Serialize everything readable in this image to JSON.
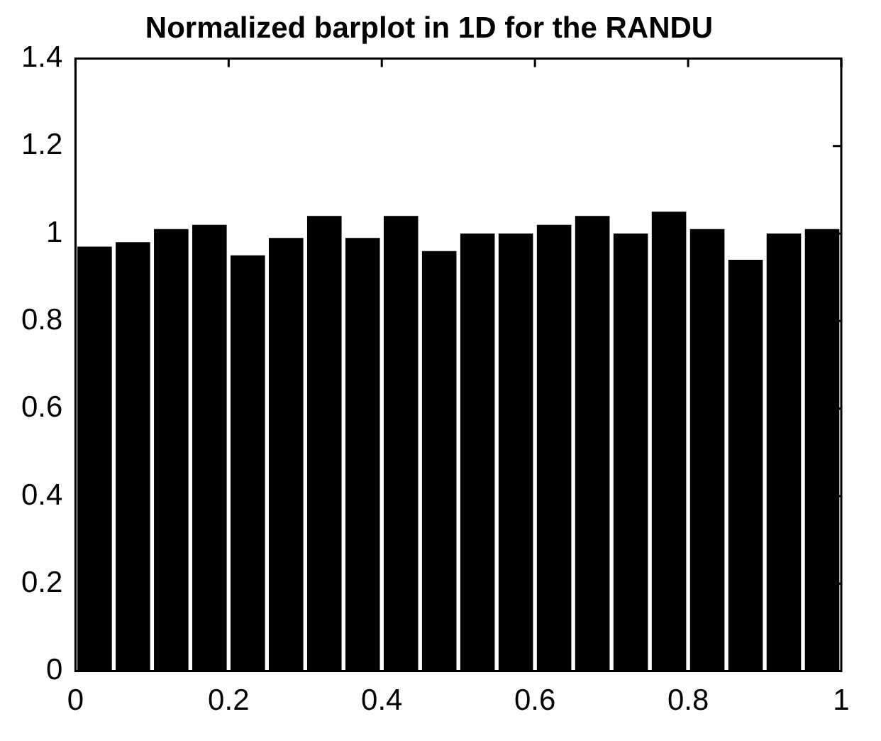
{
  "chart_data": {
    "type": "histogram",
    "title": "Normalized barplot in 1D for the RANDU",
    "bins": [
      0,
      0.05,
      0.1,
      0.15,
      0.2,
      0.25,
      0.3,
      0.35,
      0.4,
      0.45,
      0.5,
      0.55,
      0.6,
      0.65,
      0.7,
      0.75,
      0.8,
      0.85,
      0.9,
      0.95,
      1
    ],
    "values": [
      0.97,
      0.98,
      1.01,
      1.02,
      0.95,
      0.99,
      1.04,
      0.99,
      1.04,
      0.96,
      1.0,
      1.0,
      1.02,
      1.04,
      1.0,
      1.05,
      1.01,
      0.94,
      1.0,
      1.01
    ],
    "color": "#000000",
    "xlim": [
      0,
      1
    ],
    "xticks": [
      0,
      0.2,
      0.4,
      0.6,
      0.8,
      1
    ],
    "ylim": [
      0,
      1.4
    ],
    "yticks": [
      0,
      0.2,
      0.4,
      0.6,
      0.8,
      1,
      1.2,
      1.4
    ],
    "grid": false
  }
}
